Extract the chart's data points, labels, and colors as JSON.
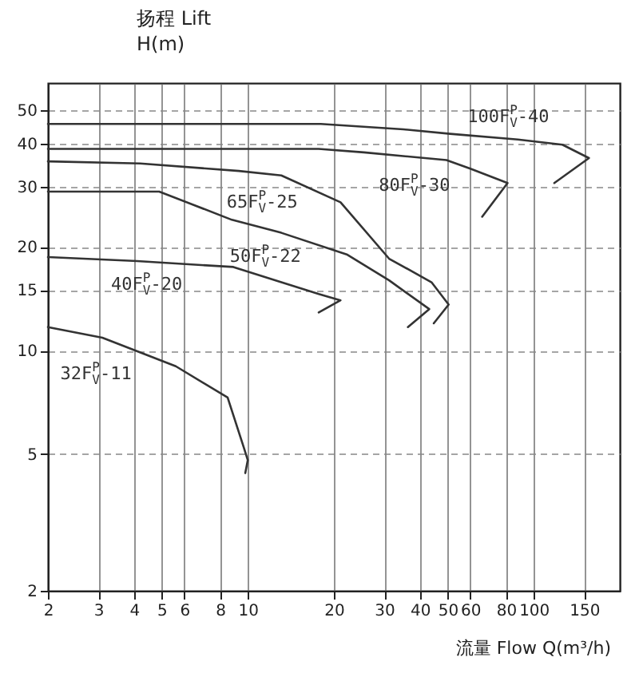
{
  "chart_data": {
    "type": "line",
    "xlabel": "流量 Flow  Q(m³/h)",
    "ylabel": "扬程 Lift\nH(m)",
    "log": "xy",
    "xlim": [
      2,
      200
    ],
    "ylim": [
      2,
      60
    ],
    "xticks": [
      2,
      3,
      4,
      5,
      6,
      8,
      10,
      20,
      30,
      40,
      50,
      60,
      80,
      100,
      150
    ],
    "yticks": [
      2,
      5,
      10,
      15,
      20,
      30,
      40,
      50
    ],
    "grid": true,
    "line_style": "solid",
    "series": [
      {
        "name": "32F$^{P}$$_{V}$-11",
        "color": "#333333",
        "x": [
          2,
          3.1,
          5.6,
          8.5,
          9.7,
          10,
          9.8
        ],
        "values": [
          11.7,
          10.9,
          9,
          7.3,
          5.2,
          4.8,
          4.4
        ]
      },
      {
        "name": "40F$^{P}$$_{V}$-20",
        "color": "#333333",
        "x": [
          2,
          4.1,
          8.9,
          13.1,
          17.7,
          21.1,
          17.7
        ],
        "values": [
          18.7,
          18.2,
          17.5,
          15.8,
          14.6,
          14,
          12.9
        ]
      },
      {
        "name": "50F$^{P}$$_{V}$-22",
        "color": "#333333",
        "x": [
          2,
          4.9,
          8.8,
          13.1,
          22.3,
          31.2,
          43.1,
          36.3
        ],
        "values": [
          29,
          29,
          24,
          22,
          19,
          16,
          13.2,
          11.7
        ]
      },
      {
        "name": "65F$^{P}$$_{V}$-25",
        "color": "#333333",
        "x": [
          2,
          4.2,
          9.3,
          13.1,
          21.1,
          31.2,
          43.9,
          50.4,
          44.7
        ],
        "values": [
          35.5,
          35,
          33.3,
          32.3,
          27,
          18.5,
          15.8,
          13.6,
          12
        ]
      },
      {
        "name": "80F$^{P}$$_{V}$-30",
        "color": "#333333",
        "x": [
          2,
          10,
          17.7,
          25.5,
          49.5,
          60,
          81,
          66
        ],
        "values": [
          38.6,
          38.6,
          38.6,
          37.7,
          35.8,
          33.8,
          30.7,
          24.5
        ]
      },
      {
        "name": "100F$^{P}$$_{V}$-40",
        "color": "#333333",
        "x": [
          2,
          10,
          18,
          35,
          51,
          88,
          126,
          156,
          118
        ],
        "values": [
          45.6,
          45.6,
          45.6,
          44,
          42.7,
          41.1,
          39.7,
          36.3,
          30.7
        ]
      }
    ]
  }
}
